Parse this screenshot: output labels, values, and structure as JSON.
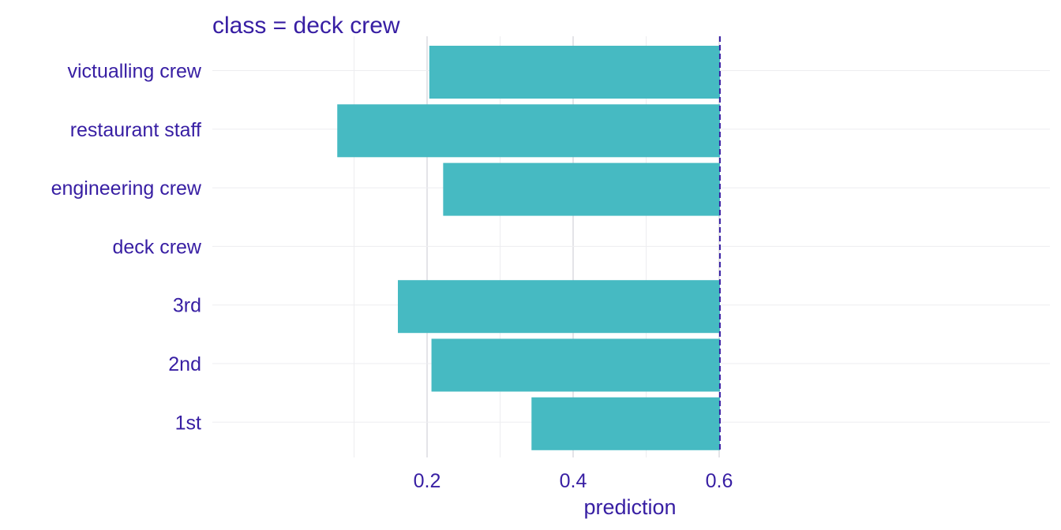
{
  "chart_data": {
    "type": "bar",
    "orientation": "horizontal",
    "facet_title": "class = deck crew",
    "xlabel": "prediction",
    "ylabel": "",
    "categories": [
      "victualling crew",
      "restaurant staff",
      "engineering crew",
      "deck crew",
      "3rd",
      "2nd",
      "1st"
    ],
    "values": [
      0.203,
      0.077,
      0.222,
      0.601,
      0.16,
      0.206,
      0.343
    ],
    "baseline": 0.601,
    "xlim": [
      0.07,
      0.625
    ],
    "x_ticks": [
      0.2,
      0.4,
      0.6
    ],
    "x_tick_labels": [
      "0.2",
      "0.4",
      "0.6"
    ],
    "x_minor_ticks": [
      0.1,
      0.3,
      0.5
    ],
    "grid": true,
    "colors": {
      "bar": "#46bac2",
      "baseline_line": "#371ea3",
      "text": "#371ea3"
    }
  }
}
